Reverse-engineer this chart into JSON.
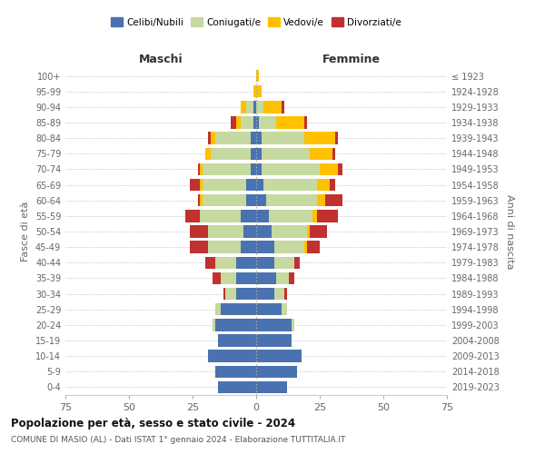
{
  "age_groups": [
    "0-4",
    "5-9",
    "10-14",
    "15-19",
    "20-24",
    "25-29",
    "30-34",
    "35-39",
    "40-44",
    "45-49",
    "50-54",
    "55-59",
    "60-64",
    "65-69",
    "70-74",
    "75-79",
    "80-84",
    "85-89",
    "90-94",
    "95-99",
    "100+"
  ],
  "birth_years": [
    "2019-2023",
    "2014-2018",
    "2009-2013",
    "2004-2008",
    "1999-2003",
    "1994-1998",
    "1989-1993",
    "1984-1988",
    "1979-1983",
    "1974-1978",
    "1969-1973",
    "1964-1968",
    "1959-1963",
    "1954-1958",
    "1949-1953",
    "1944-1948",
    "1939-1943",
    "1934-1938",
    "1929-1933",
    "1924-1928",
    "≤ 1923"
  ],
  "colors": {
    "celibi": "#4a72b0",
    "coniugati": "#c5d9a0",
    "vedovi": "#ffc000",
    "divorziati": "#c0312f"
  },
  "maschi": {
    "celibi": [
      15,
      16,
      19,
      15,
      16,
      14,
      8,
      8,
      8,
      6,
      5,
      6,
      4,
      4,
      2,
      2,
      2,
      1,
      1,
      0,
      0
    ],
    "coniugati": [
      0,
      0,
      0,
      0,
      1,
      2,
      4,
      6,
      8,
      13,
      14,
      16,
      17,
      17,
      19,
      16,
      14,
      5,
      3,
      0,
      0
    ],
    "vedovi": [
      0,
      0,
      0,
      0,
      0,
      0,
      0,
      0,
      0,
      0,
      0,
      0,
      1,
      1,
      1,
      2,
      2,
      2,
      2,
      1,
      0
    ],
    "divorziati": [
      0,
      0,
      0,
      0,
      0,
      0,
      1,
      3,
      4,
      7,
      7,
      6,
      1,
      4,
      1,
      0,
      1,
      2,
      0,
      0,
      0
    ]
  },
  "femmine": {
    "nubili": [
      12,
      16,
      18,
      14,
      14,
      10,
      7,
      8,
      7,
      7,
      6,
      5,
      4,
      3,
      2,
      2,
      2,
      1,
      0,
      0,
      0
    ],
    "coniugate": [
      0,
      0,
      0,
      0,
      1,
      2,
      4,
      5,
      8,
      12,
      14,
      17,
      20,
      21,
      23,
      19,
      17,
      7,
      3,
      0,
      0
    ],
    "vedove": [
      0,
      0,
      0,
      0,
      0,
      0,
      0,
      0,
      0,
      1,
      1,
      2,
      3,
      5,
      7,
      9,
      12,
      11,
      7,
      2,
      1
    ],
    "divorziate": [
      0,
      0,
      0,
      0,
      0,
      0,
      1,
      2,
      2,
      5,
      7,
      8,
      7,
      2,
      2,
      1,
      1,
      1,
      1,
      0,
      0
    ]
  },
  "title": "Popolazione per età, sesso e stato civile - 2024",
  "subtitle": "COMUNE DI MASIO (AL) - Dati ISTAT 1° gennaio 2024 - Elaborazione TUTTITALIA.IT",
  "xlabel_left": "Maschi",
  "xlabel_right": "Femmine",
  "ylabel": "Fasce di età",
  "ylabel_right": "Anni di nascita",
  "xlim": 75,
  "legend_labels": [
    "Celibi/Nubili",
    "Coniugati/e",
    "Vedovi/e",
    "Divorziati/e"
  ]
}
